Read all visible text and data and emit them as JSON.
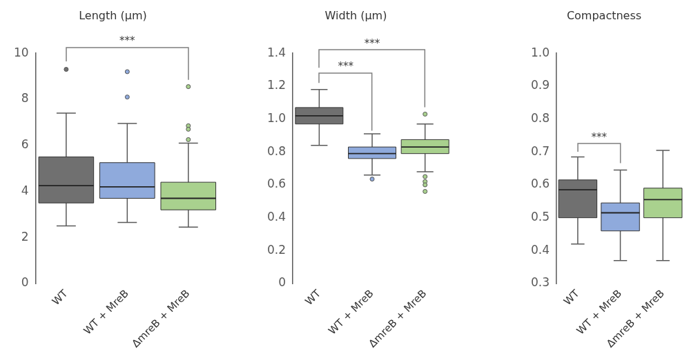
{
  "chart_data": [
    {
      "type": "box",
      "title": "Length (μm)",
      "categories": [
        "WT",
        "WT + MreB",
        "ΔmreB + MreB"
      ],
      "colors": [
        "#707070",
        "#8faadc",
        "#a9d18e"
      ],
      "boxes": [
        {
          "low": 2.5,
          "q1": 3.5,
          "median": 4.25,
          "q3": 5.5,
          "high": 7.4,
          "outliers": [
            9.3
          ]
        },
        {
          "low": 2.65,
          "q1": 3.7,
          "median": 4.2,
          "q3": 5.25,
          "high": 6.95,
          "outliers": [
            9.2,
            8.1
          ]
        },
        {
          "low": 2.45,
          "q1": 3.2,
          "median": 3.7,
          "q3": 4.4,
          "high": 6.1,
          "outliers": [
            8.55,
            6.85,
            6.7,
            6.25
          ]
        }
      ],
      "ylim": [
        0,
        10
      ],
      "yticks": [
        0,
        2,
        4,
        6,
        8,
        10
      ],
      "annotations": [
        "***"
      ]
    },
    {
      "type": "box",
      "title": "Width (μm)",
      "categories": [
        "WT",
        "WT + MreB",
        "ΔmreB + MreB"
      ],
      "colors": [
        "#707070",
        "#8faadc",
        "#a9d18e"
      ],
      "boxes": [
        {
          "low": 0.84,
          "q1": 0.97,
          "median": 1.02,
          "q3": 1.07,
          "high": 1.18
        },
        {
          "low": 0.66,
          "q1": 0.76,
          "median": 0.79,
          "q3": 0.83,
          "high": 0.91,
          "outliers": [
            0.635
          ]
        },
        {
          "low": 0.68,
          "q1": 0.79,
          "median": 0.83,
          "q3": 0.875,
          "high": 0.97,
          "outliers": [
            1.03,
            0.65,
            0.62,
            0.6,
            0.56
          ]
        }
      ],
      "ylim": [
        0,
        1.4
      ],
      "yticks": [
        0,
        0.2,
        0.4,
        0.6,
        0.8,
        {
          "value": 1,
          "label": "1.0"
        },
        1.2,
        1.4
      ],
      "annotations": [
        "***",
        "***"
      ]
    },
    {
      "type": "box",
      "title": "Compactness",
      "categories": [
        "WT",
        "WT + MreB",
        "ΔmreB + MreB"
      ],
      "colors": [
        "#707070",
        "#8faadc",
        "#a9d18e"
      ],
      "boxes": [
        {
          "low": 0.42,
          "q1": 0.5,
          "median": 0.585,
          "q3": 0.615,
          "high": 0.685
        },
        {
          "low": 0.37,
          "q1": 0.46,
          "median": 0.515,
          "q3": 0.545,
          "high": 0.645
        },
        {
          "low": 0.37,
          "q1": 0.5,
          "median": 0.555,
          "q3": 0.59,
          "high": 0.705
        }
      ],
      "ylim": [
        0.3,
        1
      ],
      "yticks": [
        0.3,
        0.4,
        0.5,
        0.6,
        0.7,
        0.8,
        0.9,
        {
          "value": 1,
          "label": "1.0"
        }
      ],
      "annotations": [
        "***"
      ]
    }
  ]
}
